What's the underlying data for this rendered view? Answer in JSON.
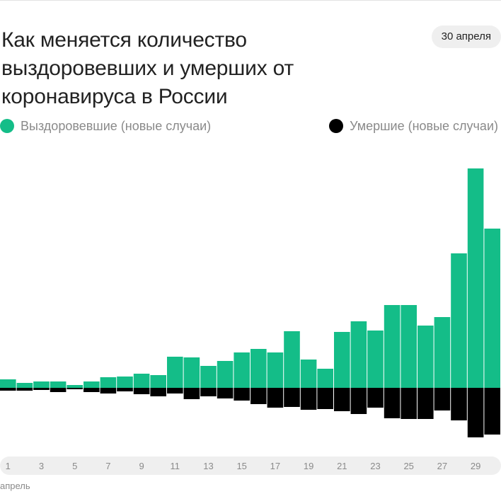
{
  "title": "Как меняется количество выздоровевших и умерших от коронавируса в России",
  "date_badge": "30 апреля",
  "legend": {
    "recovered": "Выздоровевшие (новые случаи)",
    "deaths": "Умершие (новые случаи)"
  },
  "colors": {
    "recovered": "#14bd88",
    "deaths": "#000000",
    "text": "#222222",
    "muted": "#8a8a8a"
  },
  "axis_caption": "апрель",
  "chart_data": {
    "type": "bar",
    "categories": [
      "1",
      "2",
      "3",
      "4",
      "5",
      "6",
      "7",
      "8",
      "9",
      "10",
      "11",
      "12",
      "13",
      "14",
      "15",
      "16",
      "17",
      "18",
      "19",
      "20",
      "21",
      "22",
      "23",
      "24",
      "25",
      "26",
      "27",
      "28",
      "29",
      "30"
    ],
    "tick_labels": [
      "1",
      "3",
      "5",
      "7",
      "9",
      "11",
      "13",
      "15",
      "17",
      "19",
      "21",
      "23",
      "25",
      "27",
      "29"
    ],
    "series": [
      {
        "name": "Выздоровевшие (новые случаи)",
        "direction": "up",
        "values": [
          12,
          7,
          9,
          9,
          4,
          9,
          15,
          16,
          20,
          18,
          44,
          43,
          31,
          38,
          50,
          55,
          50,
          80,
          40,
          27,
          79,
          94,
          81,
          117,
          117,
          88,
          100,
          190,
          310,
          225
        ]
      },
      {
        "name": "Умершие (новые случаи)",
        "direction": "down",
        "values": [
          4,
          4,
          3,
          6,
          2,
          6,
          8,
          5,
          9,
          12,
          8,
          16,
          12,
          15,
          18,
          23,
          28,
          27,
          31,
          30,
          33,
          37,
          28,
          43,
          44,
          44,
          32,
          46,
          70,
          66
        ]
      }
    ]
  }
}
